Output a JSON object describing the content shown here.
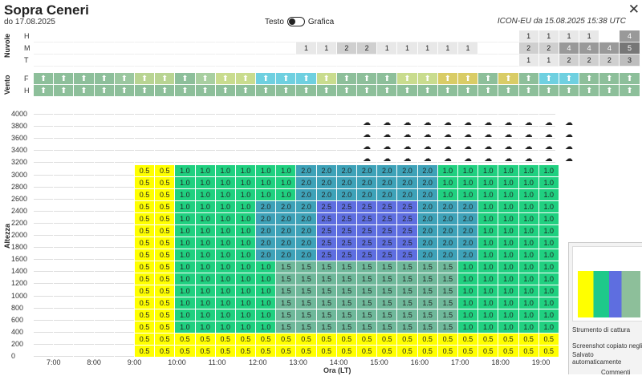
{
  "header": {
    "title": "Sopra Ceneri",
    "subtitle": "do 17.08.2025",
    "toggle_left": "Testo",
    "toggle_right": "Grafica",
    "model_info": "ICON-EU da 15.08.2025 15:38 UTC"
  },
  "labels": {
    "nuvole": "Nuvole",
    "vento": "Vento",
    "altezza": "Altezza",
    "ora": "Ora (LT)",
    "h": "H",
    "m": "M",
    "t": "T",
    "f": "F",
    "h2": "H"
  },
  "clouds": {
    "H": [
      "",
      "",
      "",
      "",
      "",
      "",
      "",
      "",
      "",
      "",
      "",
      "",
      "",
      "",
      "",
      "",
      "",
      "",
      "",
      "",
      "",
      "",
      "",
      "",
      "1",
      "1",
      "1",
      "1",
      "",
      "4"
    ],
    "M": [
      "",
      "",
      "",
      "",
      "",
      "",
      "",
      "",
      "",
      "",
      "",
      "",
      "",
      "1",
      "1",
      "2",
      "2",
      "1",
      "1",
      "1",
      "1",
      "1",
      "",
      "",
      "2",
      "2",
      "4",
      "4",
      "4",
      "5"
    ],
    "T": [
      "",
      "",
      "",
      "",
      "",
      "",
      "",
      "",
      "",
      "",
      "",
      "",
      "",
      "",
      "",
      "",
      "",
      "",
      "",
      "",
      "",
      "",
      "",
      "",
      "1",
      "1",
      "2",
      "2",
      "2",
      "3"
    ]
  },
  "y_labels": [
    "4000",
    "3800",
    "3600",
    "3400",
    "3200",
    "3000",
    "2800",
    "2600",
    "2400",
    "2200",
    "2000",
    "1800",
    "1600",
    "1400",
    "1200",
    "1000",
    "800",
    "600",
    "400",
    "200",
    "0"
  ],
  "x_labels": [
    "7:00",
    "8:00",
    "9:00",
    "10:00",
    "11:00",
    "12:00",
    "13:00",
    "14:00",
    "15:00",
    "16:00",
    "17:00",
    "18:00",
    "19:00"
  ],
  "popup": {
    "title": "Strumento di cattura",
    "line1": "Screenshot copiato negli",
    "line2": "Salvato automaticamente",
    "line3": "Commenti"
  }
}
